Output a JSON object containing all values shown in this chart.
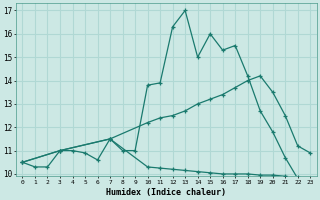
{
  "xlabel": "Humidex (Indice chaleur)",
  "background_color": "#cce8e4",
  "grid_color": "#b0d8d4",
  "line_color": "#1a7a6e",
  "xlim": [
    -0.5,
    23.5
  ],
  "ylim": [
    9.9,
    17.3
  ],
  "yticks": [
    10,
    11,
    12,
    13,
    14,
    15,
    16,
    17
  ],
  "xticks": [
    0,
    1,
    2,
    3,
    4,
    5,
    6,
    7,
    8,
    9,
    10,
    11,
    12,
    13,
    14,
    15,
    16,
    17,
    18,
    19,
    20,
    21,
    22,
    23
  ],
  "series1_x": [
    0,
    1,
    2,
    3,
    4,
    5,
    6,
    7,
    8,
    9,
    10,
    11,
    12,
    13,
    14,
    15,
    16,
    17,
    18,
    19,
    20,
    21,
    22,
    23
  ],
  "series1_y": [
    10.5,
    10.3,
    10.3,
    11.0,
    11.0,
    10.9,
    10.6,
    11.5,
    11.0,
    11.0,
    13.8,
    13.9,
    16.3,
    17.0,
    15.0,
    16.0,
    15.3,
    15.5,
    14.2,
    12.7,
    11.8,
    10.7,
    9.8,
    9.7
  ],
  "series2_x": [
    0,
    3,
    7,
    10,
    11,
    12,
    13,
    14,
    15,
    16,
    17,
    18,
    19,
    20,
    21,
    22,
    23
  ],
  "series2_y": [
    10.5,
    11.0,
    11.5,
    12.2,
    12.4,
    12.5,
    12.7,
    13.0,
    13.2,
    13.4,
    13.7,
    14.0,
    14.2,
    13.5,
    12.5,
    11.2,
    10.9
  ],
  "series3_x": [
    0,
    3,
    7,
    10,
    11,
    12,
    13,
    14,
    15,
    16,
    17,
    18,
    19,
    20,
    21,
    22,
    23
  ],
  "series3_y": [
    10.5,
    11.0,
    11.5,
    10.3,
    10.25,
    10.2,
    10.15,
    10.1,
    10.05,
    10.0,
    10.0,
    10.0,
    9.95,
    9.95,
    9.9,
    9.85,
    9.7
  ]
}
